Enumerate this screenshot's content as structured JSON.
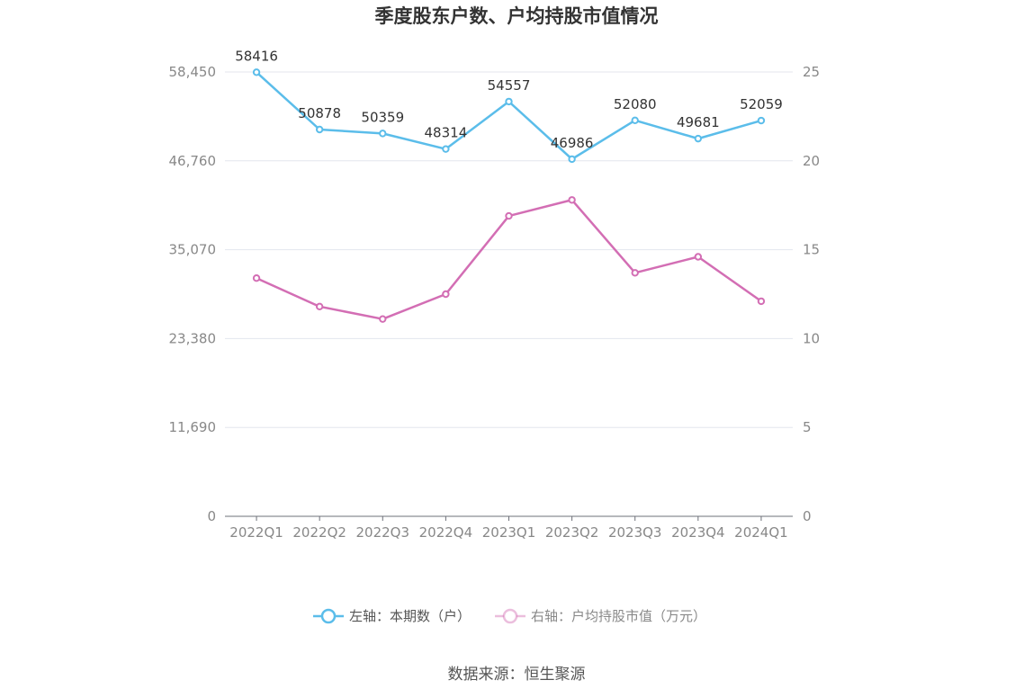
{
  "chart_data": {
    "type": "line",
    "title": "季度股东户数、户均持股市值情况",
    "categories": [
      "2022Q1",
      "2022Q2",
      "2022Q3",
      "2022Q4",
      "2023Q1",
      "2023Q2",
      "2023Q3",
      "2023Q4",
      "2024Q1"
    ],
    "left_axis": {
      "range": [
        0,
        58450
      ],
      "ticks": [
        0,
        11690,
        23380,
        35070,
        46760,
        58450
      ],
      "tick_labels": [
        "0",
        "11,690",
        "23,380",
        "35,070",
        "46,760",
        "58,450"
      ]
    },
    "right_axis": {
      "range": [
        0,
        25
      ],
      "ticks": [
        0,
        5,
        10,
        15,
        20,
        25
      ],
      "tick_labels": [
        "0",
        "5",
        "10",
        "15",
        "20",
        "25"
      ]
    },
    "series": [
      {
        "name": "左轴：本期数（户）",
        "axis": "left",
        "color": "#5bbdea",
        "values": [
          58416,
          50878,
          50359,
          48314,
          54557,
          46986,
          52080,
          49681,
          52059
        ],
        "labels": [
          "58416",
          "50878",
          "50359",
          "48314",
          "54557",
          "46986",
          "52080",
          "49681",
          "52059"
        ]
      },
      {
        "name": "右轴：户均持股市值（万元）",
        "axis": "right",
        "color": "#d36eb4",
        "values": [
          13.4,
          11.8,
          11.1,
          12.5,
          16.9,
          17.8,
          13.7,
          14.6,
          12.1
        ]
      }
    ],
    "grid": true,
    "legend_position": "bottom"
  },
  "source_text": "数据来源：恒生聚源"
}
